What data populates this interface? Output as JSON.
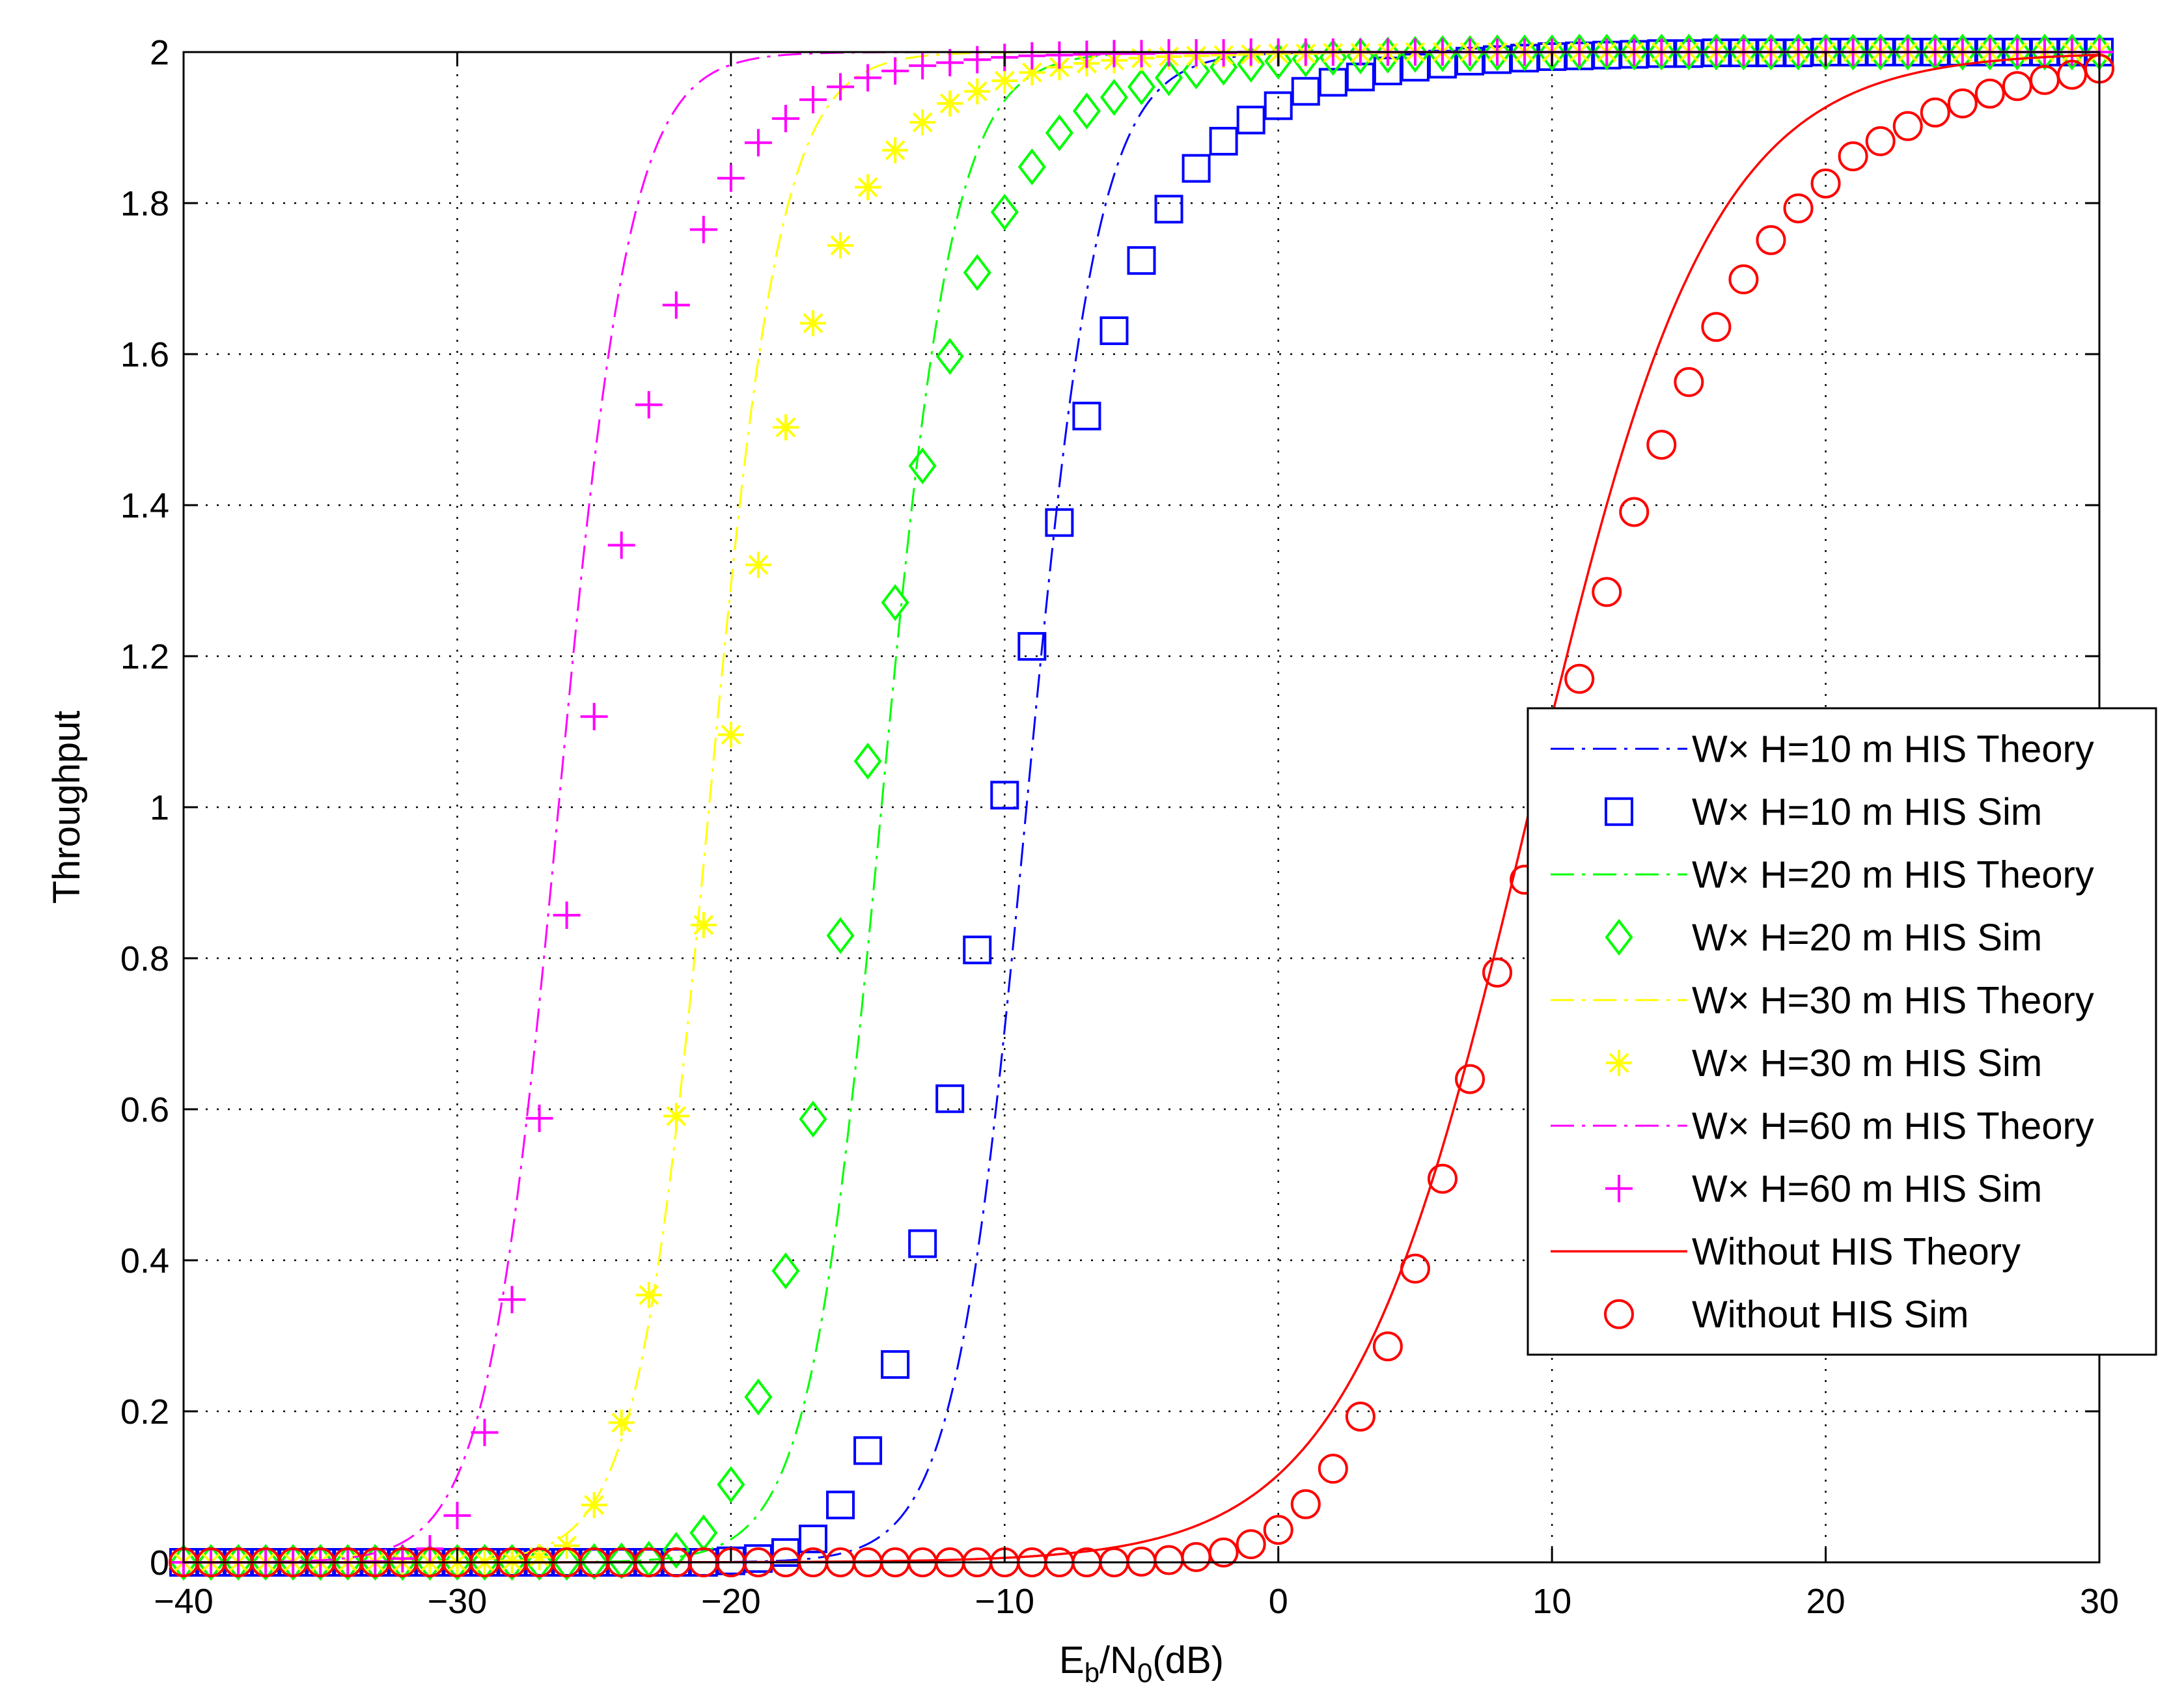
{
  "chart_data": {
    "type": "line",
    "title": "",
    "xlabel": "E_b/N_0(dB)",
    "xlabel_parts": {
      "main": "E",
      "sub1": "b",
      "mid": "/N",
      "sub2": "0",
      "tail": "(dB)"
    },
    "ylabel": "Throughput",
    "xlim": [
      -40,
      30
    ],
    "ylim": [
      0,
      2
    ],
    "xticks": [
      -40,
      -30,
      -20,
      -10,
      0,
      10,
      20,
      30
    ],
    "xtick_labels": [
      "−40",
      "−30",
      "−20",
      "−10",
      "0",
      "10",
      "20",
      "30"
    ],
    "yticks": [
      0,
      0.2,
      0.4,
      0.6,
      0.8,
      1,
      1.2,
      1.4,
      1.6,
      1.8,
      2
    ],
    "ytick_labels": [
      "0",
      "0.2",
      "0.4",
      "0.6",
      "0.8",
      "1",
      "1.2",
      "1.4",
      "1.6",
      "1.8",
      "2"
    ],
    "grid": true,
    "legend_position": "right",
    "x_start": -40,
    "x_step": 1,
    "series": [
      {
        "name": "W× H=10 m HIS Theory",
        "kind": "theory",
        "color": "#0000ff",
        "curve": {
          "midpoint": -9.2,
          "width": 1.32
        }
      },
      {
        "name": "W× H=10 m HIS Sim",
        "kind": "sim",
        "marker": "square",
        "color": "#0000ff",
        "y": [
          0,
          0,
          0,
          0,
          0,
          0,
          0,
          0,
          0,
          0,
          0,
          0,
          0,
          0,
          0,
          0,
          0,
          0,
          0,
          0,
          0.002,
          0.005,
          0.013,
          0.031,
          0.076,
          0.148,
          0.262,
          0.422,
          0.614,
          0.811,
          1.016,
          1.213,
          1.377,
          1.518,
          1.631,
          1.724,
          1.792,
          1.846,
          1.882,
          1.91,
          1.929,
          1.948,
          1.96,
          1.967,
          1.975,
          1.98,
          1.984,
          1.988,
          1.99,
          1.992,
          1.994,
          1.995,
          1.996,
          1.997,
          1.998,
          1.998,
          1.999,
          1.999,
          1.999,
          1.999,
          2.0,
          2.0,
          2.0,
          2.0,
          2.0,
          2.0,
          2.0,
          2.0,
          2.0,
          2.0,
          2.0
        ]
      },
      {
        "name": "W× H=20 m HIS Theory",
        "kind": "theory",
        "color": "#00ff00",
        "curve": {
          "midpoint": -14.5,
          "width": 1.32
        }
      },
      {
        "name": "W× H=20 m HIS Sim",
        "kind": "sim",
        "marker": "diamond",
        "color": "#00ff00",
        "y": [
          0,
          0,
          0,
          0,
          0,
          0,
          0,
          0,
          0,
          0,
          0,
          0,
          0,
          0,
          0,
          0.001,
          0.002,
          0.004,
          0.016,
          0.039,
          0.103,
          0.219,
          0.386,
          0.587,
          0.83,
          1.061,
          1.271,
          1.452,
          1.597,
          1.708,
          1.788,
          1.848,
          1.893,
          1.922,
          1.94,
          1.954,
          1.966,
          1.975,
          1.98,
          1.984,
          1.988,
          1.991,
          1.993,
          1.995,
          1.996,
          1.997,
          1.998,
          1.998,
          1.999,
          1.999,
          1.999,
          2.0,
          2.0,
          2.0,
          2.0,
          2.0,
          2.0,
          2.0,
          2.0,
          2.0,
          2.0,
          2.0,
          2.0,
          2.0,
          2.0,
          2.0,
          2.0,
          2.0,
          2.0,
          2.0,
          2.0
        ]
      },
      {
        "name": "W× H=30 m HIS Theory",
        "kind": "theory",
        "color": "#ffff00",
        "curve": {
          "midpoint": -20.8,
          "width": 1.32
        }
      },
      {
        "name": "W× H=30 m HIS Sim",
        "kind": "sim",
        "marker": "star",
        "color": "#ffff00",
        "y": [
          0,
          0,
          0,
          0,
          0,
          0,
          0,
          0,
          0,
          0,
          0,
          0,
          0.002,
          0.007,
          0.022,
          0.076,
          0.185,
          0.354,
          0.591,
          0.844,
          1.096,
          1.321,
          1.503,
          1.641,
          1.744,
          1.821,
          1.87,
          1.907,
          1.932,
          1.948,
          1.962,
          1.973,
          1.98,
          1.985,
          1.989,
          1.992,
          1.994,
          1.995,
          1.996,
          1.997,
          1.998,
          1.998,
          1.999,
          1.999,
          1.999,
          2.0,
          2.0,
          2.0,
          2.0,
          2.0,
          2.0,
          2.0,
          2.0,
          2.0,
          2.0,
          2.0,
          2.0,
          2.0,
          2.0,
          2.0,
          2.0,
          2.0,
          2.0,
          2.0,
          2.0,
          2.0,
          2.0,
          2.0,
          2.0,
          2.0,
          2.0
        ]
      },
      {
        "name": "W× H=60 m HIS Theory",
        "kind": "theory",
        "color": "#ff00ff",
        "curve": {
          "midpoint": -26.3,
          "width": 1.32
        }
      },
      {
        "name": "W× H=60 m HIS  Sim",
        "kind": "sim",
        "marker": "plus",
        "color": "#ff00ff",
        "y": [
          0,
          0,
          0,
          0,
          0,
          0,
          0,
          0.001,
          0.005,
          0.018,
          0.062,
          0.172,
          0.348,
          0.588,
          0.857,
          1.12,
          1.347,
          1.533,
          1.665,
          1.765,
          1.833,
          1.88,
          1.912,
          1.937,
          1.954,
          1.966,
          1.975,
          1.982,
          1.986,
          1.99,
          1.993,
          1.995,
          1.996,
          1.997,
          1.998,
          1.998,
          1.999,
          1.999,
          1.999,
          2.0,
          2.0,
          2.0,
          2.0,
          2.0,
          2.0,
          2.0,
          2.0,
          2.0,
          2.0,
          2.0,
          2.0,
          2.0,
          2.0,
          2.0,
          2.0,
          2.0,
          2.0,
          2.0,
          2.0,
          2.0,
          2.0,
          2.0,
          2.0,
          2.0,
          2.0,
          2.0,
          2.0,
          2.0,
          2.0,
          2.0,
          2.0
        ]
      },
      {
        "name": "Without HIS Theory",
        "kind": "theory",
        "color": "#ff0000",
        "curve": {
          "midpoint": 9.2,
          "width": 3.3
        }
      },
      {
        "name": "Without HIS Sim",
        "kind": "sim",
        "marker": "circle",
        "color": "#ff0000",
        "y": [
          0,
          0,
          0,
          0,
          0,
          0,
          0,
          0,
          0,
          0,
          0,
          0,
          0,
          0,
          0,
          0,
          0,
          0,
          0,
          0,
          0,
          0,
          0,
          0,
          0,
          0,
          0,
          0,
          0,
          0,
          0,
          0,
          0,
          0,
          0,
          0.001,
          0.003,
          0.007,
          0.013,
          0.024,
          0.043,
          0.077,
          0.124,
          0.193,
          0.286,
          0.389,
          0.508,
          0.64,
          0.781,
          0.904,
          1.043,
          1.17,
          1.285,
          1.391,
          1.48,
          1.563,
          1.636,
          1.699,
          1.751,
          1.793,
          1.826,
          1.862,
          1.882,
          1.902,
          1.92,
          1.932,
          1.945,
          1.955,
          1.963,
          1.97,
          1.978
        ]
      }
    ]
  }
}
